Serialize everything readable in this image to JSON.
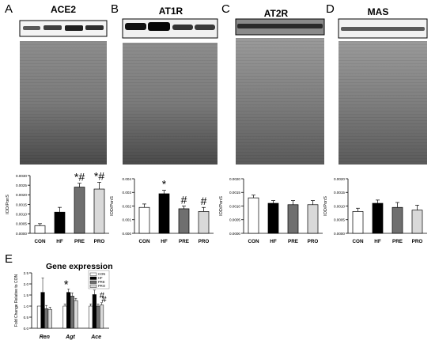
{
  "figure": {
    "panel_letters": [
      "A",
      "B",
      "C",
      "D",
      "E"
    ],
    "blot_titles": [
      "ACE2",
      "AT1R",
      "AT2R",
      "MAS"
    ]
  },
  "chart_data": [
    {
      "type": "bar",
      "panel": "A",
      "categories": [
        "CON",
        "HF",
        "PRE",
        "PRO"
      ],
      "values": [
        0.0004,
        0.0011,
        0.0024,
        0.0023
      ],
      "errors": [
        0.0001,
        0.00025,
        0.0002,
        0.00035
      ],
      "ylabel": "IOD/PonS",
      "ylim": [
        0,
        0.003
      ],
      "yticks": [
        "0.0000",
        "0.0005",
        "0.0010",
        "0.0015",
        "0.0020",
        "0.0025",
        "0.0030"
      ],
      "annotations": [
        "",
        "",
        "*#",
        "*#"
      ],
      "colors": [
        "#ffffff",
        "#000000",
        "#6f6f6f",
        "#d9d9d9"
      ]
    },
    {
      "type": "bar",
      "panel": "B",
      "categories": [
        "CON",
        "HF",
        "PRE",
        "PRO"
      ],
      "values": [
        0.0019,
        0.0029,
        0.0018,
        0.0016
      ],
      "errors": [
        0.00025,
        0.00025,
        0.0002,
        0.0003
      ],
      "ylabel": "IOD/PonS",
      "ylim": [
        0,
        0.004
      ],
      "yticks": [
        "0.000",
        "0.001",
        "0.002",
        "0.003",
        "0.004"
      ],
      "annotations": [
        "",
        "*",
        "#",
        "#"
      ],
      "colors": [
        "#ffffff",
        "#000000",
        "#6f6f6f",
        "#d9d9d9"
      ]
    },
    {
      "type": "bar",
      "panel": "C",
      "categories": [
        "CON",
        "HF",
        "PRE",
        "PRO"
      ],
      "values": [
        0.0013,
        0.0011,
        0.00105,
        0.00105
      ],
      "errors": [
        0.0001,
        0.0001,
        0.00015,
        0.00015
      ],
      "ylabel": "IOD/PonS",
      "ylim": [
        0,
        0.002
      ],
      "yticks": [
        "0.0000",
        "0.0005",
        "0.0010",
        "0.0015",
        "0.0020"
      ],
      "annotations": [
        "",
        "",
        "",
        ""
      ],
      "colors": [
        "#ffffff",
        "#000000",
        "#6f6f6f",
        "#d9d9d9"
      ]
    },
    {
      "type": "bar",
      "panel": "D",
      "categories": [
        "CON",
        "HF",
        "PRE",
        "PRO"
      ],
      "values": [
        0.0008,
        0.0011,
        0.00095,
        0.00085
      ],
      "errors": [
        0.00012,
        0.00012,
        0.00018,
        0.00018
      ],
      "ylabel": "IOD/PonS",
      "ylim": [
        0,
        0.002
      ],
      "yticks": [
        "0.0000",
        "0.0005",
        "0.0010",
        "0.0015",
        "0.0020"
      ],
      "annotations": [
        "",
        "",
        "",
        ""
      ],
      "colors": [
        "#ffffff",
        "#000000",
        "#6f6f6f",
        "#d9d9d9"
      ]
    },
    {
      "type": "bar",
      "panel": "E",
      "title": "Gene expression",
      "categories": [
        "Ren",
        "Agt",
        "Ace"
      ],
      "series": [
        {
          "name": "CON",
          "values": [
            1.0,
            1.0,
            1.0
          ],
          "errors": [
            0.0,
            0.1,
            0.1
          ]
        },
        {
          "name": "HF",
          "values": [
            1.62,
            1.62,
            1.52
          ],
          "errors": [
            0.65,
            0.15,
            0.2
          ]
        },
        {
          "name": "PRE",
          "values": [
            0.88,
            1.45,
            1.0
          ],
          "errors": [
            0.15,
            0.15,
            0.1
          ]
        },
        {
          "name": "PRO",
          "values": [
            0.85,
            1.25,
            1.05
          ],
          "errors": [
            0.1,
            0.1,
            0.1
          ]
        }
      ],
      "ylabel": "Fold Change Relative to CON",
      "ylim": [
        0,
        2.5
      ],
      "yticks": [
        "0.0",
        "0.5",
        "1.0",
        "1.5",
        "2.0",
        "2.5"
      ],
      "annotations": [
        [
          "",
          "",
          "",
          ""
        ],
        [
          "",
          "*",
          "",
          ""
        ],
        [
          "",
          "*",
          "#",
          "#"
        ]
      ],
      "legend_position": "top-right",
      "colors": [
        "#ffffff",
        "#000000",
        "#6f6f6f",
        "#d9d9d9"
      ]
    }
  ]
}
